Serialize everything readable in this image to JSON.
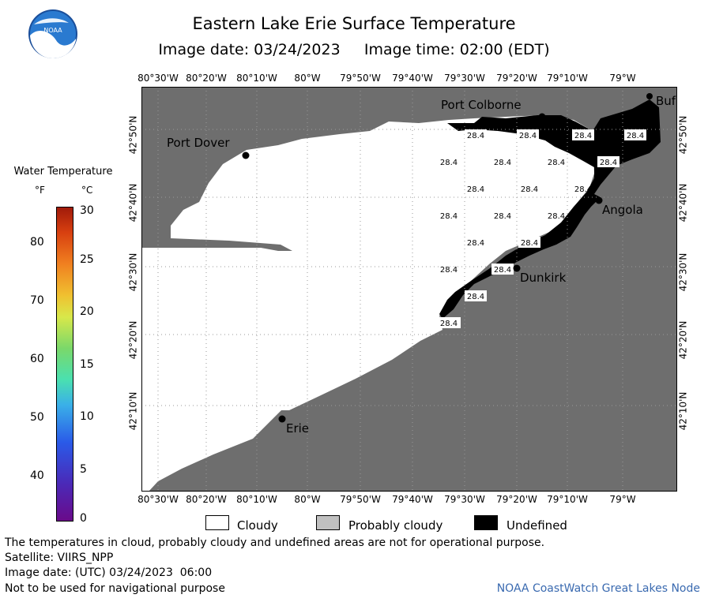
{
  "header": {
    "title": "Eastern Lake Erie Surface Temperature",
    "image_date_label": "Image date: 03/24/2023",
    "image_time_label": "Image time: 02:00 (EDT)"
  },
  "logo": {
    "text": "NOAA"
  },
  "map": {
    "lon_labels": [
      "80°30'W",
      "80°20'W",
      "80°10'W",
      "80°W",
      "79°50'W",
      "79°40'W",
      "79°30'W",
      "79°20'W",
      "79°10'W",
      "79°W"
    ],
    "lat_labels": [
      "42°50'N",
      "42°40'N",
      "42°30'N",
      "42°20'N",
      "42°10'N"
    ],
    "places": [
      "Port Colborne",
      "Port Dover",
      "Angola",
      "Dunkirk",
      "Erie",
      "Buf"
    ],
    "temp_value": "28.4"
  },
  "legend": {
    "title": "Water Temperature",
    "unit_f": "°F",
    "unit_c": "°C",
    "f_values": [
      "80",
      "70",
      "60",
      "50",
      "40"
    ],
    "c_values": [
      "30",
      "25",
      "20",
      "15",
      "10",
      "5",
      "0"
    ],
    "categories": [
      {
        "label": "Cloudy",
        "color": "#ffffff"
      },
      {
        "label": "Probably cloudy",
        "color": "#c0c0c0"
      },
      {
        "label": "Undefined",
        "color": "#000000"
      }
    ],
    "land_color": "#6e6e6e"
  },
  "footer": {
    "disclaimer": "The temperatures in cloud, probably cloudy and undefined areas are not for operational purpose.",
    "satellite": "Satellite: VIIRS_NPP",
    "utc_date": "Image date: (UTC) 03/24/2023  06:00",
    "nav_note": "Not to be used for navigational purpose",
    "credit": "NOAA CoastWatch Great Lakes Node"
  }
}
